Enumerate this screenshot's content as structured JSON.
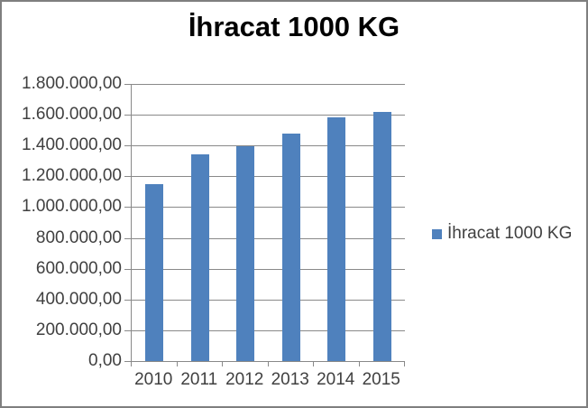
{
  "window": {
    "background": "#FFFFFF",
    "border_color": "#7F7F7F"
  },
  "chart_data": {
    "type": "bar",
    "title": "İhracat 1000 KG",
    "categories": [
      "2010",
      "2011",
      "2012",
      "2013",
      "2014",
      "2015"
    ],
    "series": [
      {
        "name": "İhracat 1000 KG",
        "values": [
          1150000,
          1345000,
          1395000,
          1475000,
          1585000,
          1620000
        ]
      }
    ],
    "xlabel": "",
    "ylabel": "",
    "ylim": [
      0,
      1800000
    ],
    "y_tick_step": 200000,
    "y_tick_labels_top_to_bottom": [
      "1.800.000,00",
      "1.600.000,00",
      "1.400.000,00",
      "1.200.000,00",
      "1.000.000,00",
      "800.000,00",
      "600.000,00",
      "400.000,00",
      "200.000,00",
      "0,00"
    ],
    "grid": true,
    "legend_position": "right",
    "legend_label": "İhracat 1000 KG",
    "bar_color": "#4F81BD",
    "gridline_color": "#898989",
    "axis_text_color": "#404040",
    "title_color": "#000000"
  }
}
